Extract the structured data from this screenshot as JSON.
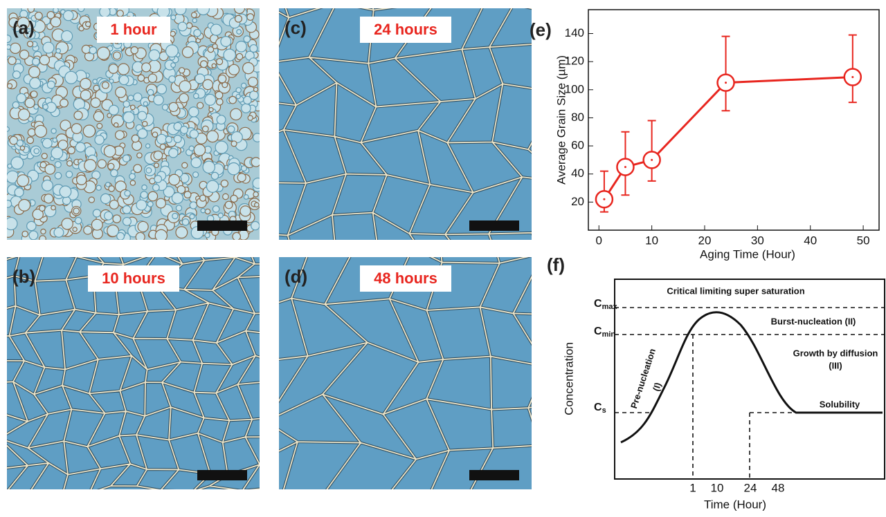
{
  "images": [
    {
      "label": "(a)",
      "caption": "1 hour"
    },
    {
      "label": "(b)",
      "caption": "10 hours"
    },
    {
      "label": "(c)",
      "caption": "24 hours"
    },
    {
      "label": "(d)",
      "caption": "48 hours"
    }
  ],
  "chart_data": {
    "type": "line",
    "label": "(e)",
    "x_label": "Aging Time (Hour)",
    "y_label": "Average Grain Size (µm)",
    "x": [
      1,
      5,
      10,
      24,
      48
    ],
    "series": [
      {
        "color": "#e8261f",
        "values": [
          22,
          45,
          50,
          105,
          109
        ],
        "error_minus": [
          9,
          20,
          15,
          20,
          18
        ],
        "error_plus": [
          20,
          25,
          28,
          33,
          30
        ]
      }
    ],
    "xlim": [
      -2,
      53
    ],
    "xticks": [
      0,
      10,
      20,
      30,
      40,
      50
    ],
    "ylim": [
      0,
      157
    ],
    "yticks": [
      20,
      40,
      60,
      80,
      100,
      120,
      140
    ]
  },
  "schematic": {
    "label": "(f)",
    "y_label": "Concentration",
    "x_label": "Time (Hour)",
    "xtick_labels": [
      "1",
      "10",
      "24",
      "48"
    ],
    "levels": [
      {
        "main": "C",
        "sub": "max"
      },
      {
        "main": "C",
        "sub": "min"
      },
      {
        "main": "C",
        "sub": "s"
      }
    ],
    "annotations": [
      "Critical limiting super saturation",
      "Burst-nucleation (II)",
      "Growth by diffusion",
      "(III)",
      "Solubility",
      "Pre-nucleation",
      "(I)"
    ]
  }
}
